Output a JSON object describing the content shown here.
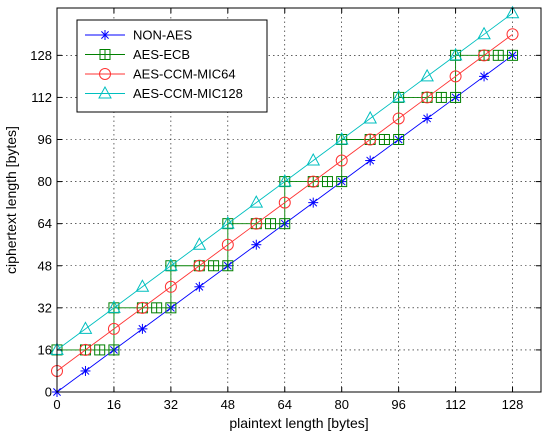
{
  "chart_data": {
    "type": "line",
    "xlabel": "plaintext length [bytes]",
    "ylabel": "ciphertext length [bytes]",
    "xlim": [
      0,
      136
    ],
    "ylim": [
      0,
      146
    ],
    "xticks": [
      0,
      16,
      32,
      48,
      64,
      80,
      96,
      112,
      128
    ],
    "yticks": [
      0,
      16,
      32,
      48,
      64,
      80,
      96,
      112,
      128
    ],
    "grid": true,
    "legend_position": "top-left",
    "series": [
      {
        "name": "NON-AES",
        "color": "#0000ff",
        "marker": "asterisk",
        "x": [
          0,
          8,
          16,
          24,
          32,
          40,
          48,
          56,
          64,
          72,
          80,
          88,
          96,
          104,
          112,
          120,
          128
        ],
        "y": [
          0,
          8,
          16,
          24,
          32,
          40,
          48,
          56,
          64,
          72,
          80,
          88,
          96,
          104,
          112,
          120,
          128
        ]
      },
      {
        "name": "AES-ECB",
        "color": "#008000",
        "marker": "square",
        "x": [
          0,
          8,
          12,
          16,
          16,
          24,
          28,
          32,
          32,
          40,
          44,
          48,
          48,
          56,
          60,
          64,
          64,
          72,
          76,
          80,
          80,
          88,
          92,
          96,
          96,
          104,
          108,
          112,
          112,
          120,
          124,
          128
        ],
        "y": [
          16,
          16,
          16,
          16,
          32,
          32,
          32,
          32,
          48,
          48,
          48,
          48,
          64,
          64,
          64,
          64,
          80,
          80,
          80,
          80,
          96,
          96,
          96,
          96,
          112,
          112,
          112,
          112,
          128,
          128,
          128,
          128
        ]
      },
      {
        "name": "AES-CCM-MIC64",
        "color": "#ff3333",
        "marker": "circle",
        "x": [
          0,
          8,
          16,
          24,
          32,
          40,
          48,
          56,
          64,
          72,
          80,
          88,
          96,
          104,
          112,
          120,
          128
        ],
        "y": [
          8,
          16,
          24,
          32,
          40,
          48,
          56,
          64,
          72,
          80,
          88,
          96,
          104,
          112,
          120,
          128,
          136
        ]
      },
      {
        "name": "AES-CCM-MIC128",
        "color": "#00bfbf",
        "marker": "triangle",
        "x": [
          0,
          8,
          16,
          24,
          32,
          40,
          48,
          56,
          64,
          72,
          80,
          88,
          96,
          104,
          112,
          120,
          128
        ],
        "y": [
          16,
          24,
          32,
          40,
          48,
          56,
          64,
          72,
          80,
          88,
          96,
          104,
          112,
          120,
          128,
          136,
          144
        ]
      }
    ]
  }
}
